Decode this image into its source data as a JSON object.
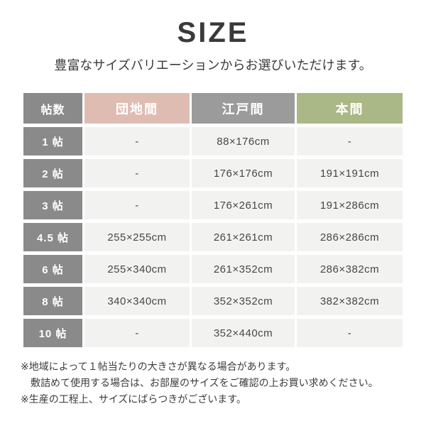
{
  "page": {
    "title": "SIZE",
    "subtitle": "豊富なサイズバリエーションからお選びいただけます。"
  },
  "table": {
    "columns": [
      "帖数",
      "団地間",
      "江戸間",
      "本間"
    ],
    "rows": [
      {
        "label": "1 帖",
        "cells": [
          "-",
          "88×176cm",
          "-"
        ]
      },
      {
        "label": "2 帖",
        "cells": [
          "-",
          "176×176cm",
          "191×191cm"
        ]
      },
      {
        "label": "3 帖",
        "cells": [
          "-",
          "176×261cm",
          "191×286cm"
        ]
      },
      {
        "label": "4.5 帖",
        "cells": [
          "255×255cm",
          "261×261cm",
          "286×286cm"
        ]
      },
      {
        "label": "6 帖",
        "cells": [
          "255×340cm",
          "261×352cm",
          "286×382cm"
        ]
      },
      {
        "label": "8 帖",
        "cells": [
          "340×340cm",
          "352×352cm",
          "382×382cm"
        ]
      },
      {
        "label": "10 帖",
        "cells": [
          "-",
          "352×440cm",
          "-"
        ]
      }
    ]
  },
  "notes": [
    "※地域によって１帖当たりの大きさが異なる場合があります。",
    "敷詰めて使用する場合は、お部屋のサイズをご確認の上お買い求めください。",
    "※生産の工程上、サイズにばらつきがございます。"
  ],
  "colors": {
    "header_gray": "#8a8a8a",
    "danchima_pink": "#dfbcb2",
    "edoma_gray": "#9b9b9b",
    "honma_green": "#a9b885",
    "cell_background": "#f2f2f1",
    "text_dark": "#3b3b3b"
  }
}
